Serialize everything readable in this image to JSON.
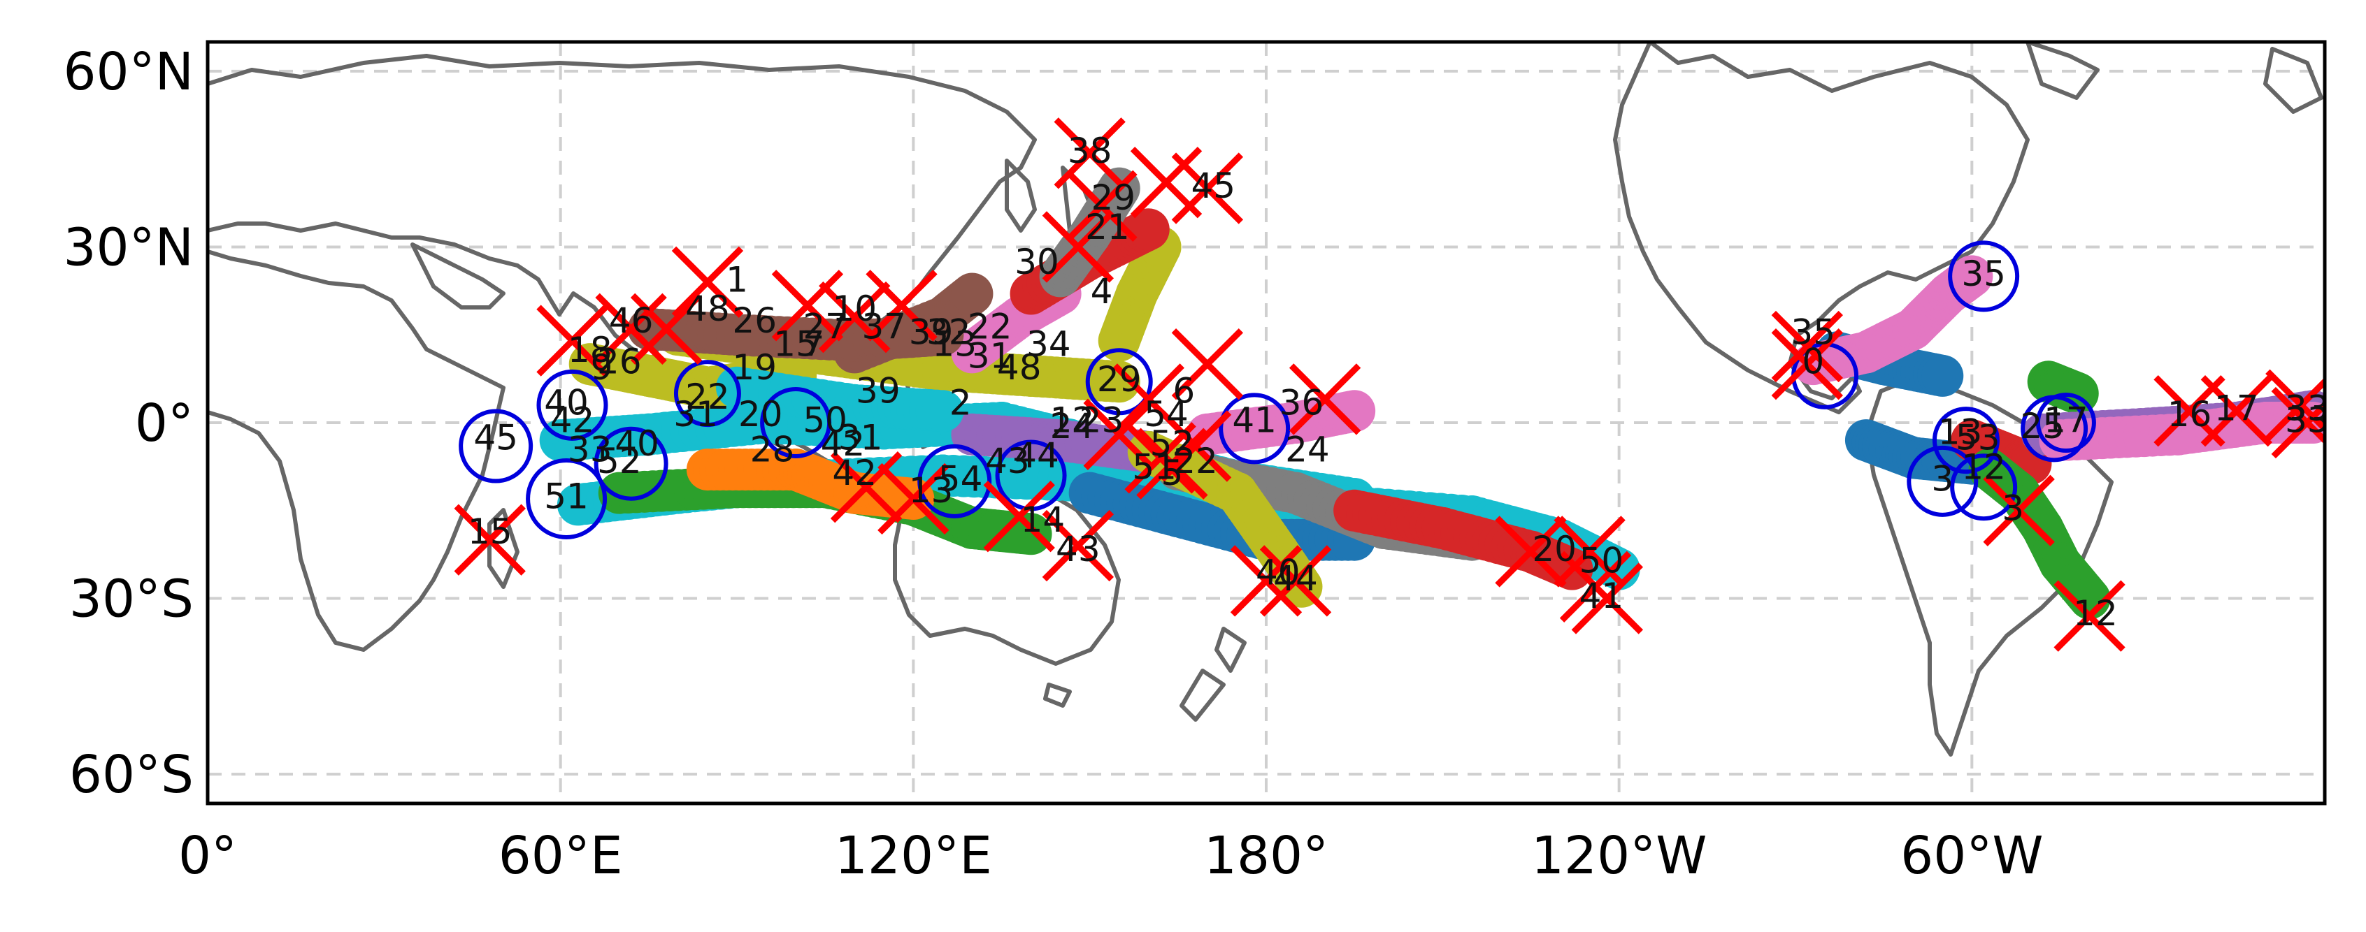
{
  "map": {
    "projection": "PlateCarree",
    "lon_range_east": [
      0,
      360
    ],
    "lat_range": [
      -65,
      65
    ],
    "x_ticks": [
      "0°",
      "60°E",
      "120°E",
      "180°",
      "120°W",
      "60°W"
    ],
    "y_ticks": [
      "60°N",
      "30°N",
      "0°",
      "30°S",
      "60°S"
    ],
    "gridlines": true,
    "coastline_color": "#666666",
    "genesis_marker": {
      "shape": "circle",
      "color": "#0000dd"
    },
    "lysis_marker": {
      "shape": "x",
      "color": "#ff0000"
    },
    "colors": [
      "#1f77b4",
      "#ff7f0e",
      "#2ca02c",
      "#d62728",
      "#9467bd",
      "#8c564b",
      "#e377c2",
      "#7f7f7f",
      "#bcbd22",
      "#17becf"
    ]
  },
  "tracks": [
    {
      "c": 9,
      "pts": [
        [
          60,
          -3
        ],
        [
          75,
          -2
        ],
        [
          95,
          0
        ],
        [
          115,
          -1
        ],
        [
          135,
          0
        ],
        [
          155,
          -5
        ],
        [
          175,
          -10
        ],
        [
          195,
          -13
        ]
      ]
    },
    {
      "c": 9,
      "pts": [
        [
          63,
          -14
        ],
        [
          80,
          -12
        ],
        [
          100,
          -10
        ],
        [
          125,
          -9
        ],
        [
          150,
          -10
        ],
        [
          170,
          -12
        ],
        [
          190,
          -14
        ],
        [
          215,
          -16
        ],
        [
          230,
          -20
        ],
        [
          240,
          -25
        ]
      ]
    },
    {
      "c": 0,
      "pts": [
        [
          150,
          -12
        ],
        [
          165,
          -16
        ],
        [
          180,
          -20
        ],
        [
          195,
          -20
        ]
      ]
    },
    {
      "c": 7,
      "pts": [
        [
          165,
          -8
        ],
        [
          185,
          -12
        ],
        [
          200,
          -18
        ],
        [
          215,
          -20
        ]
      ]
    },
    {
      "c": 3,
      "pts": [
        [
          195,
          -15
        ],
        [
          210,
          -18
        ],
        [
          225,
          -22
        ],
        [
          232,
          -25
        ]
      ]
    },
    {
      "c": 8,
      "pts": [
        [
          80,
          15
        ],
        [
          95,
          13
        ],
        [
          110,
          11
        ],
        [
          125,
          9
        ],
        [
          140,
          8
        ],
        [
          155,
          7
        ]
      ]
    },
    {
      "c": 8,
      "pts": [
        [
          155,
          14
        ],
        [
          158,
          22
        ],
        [
          162,
          30
        ]
      ]
    },
    {
      "c": 5,
      "pts": [
        [
          110,
          12
        ],
        [
          125,
          18
        ],
        [
          130,
          22
        ]
      ]
    },
    {
      "c": 6,
      "pts": [
        [
          130,
          12
        ],
        [
          138,
          18
        ],
        [
          145,
          22
        ]
      ]
    },
    {
      "c": 3,
      "pts": [
        [
          140,
          22
        ],
        [
          150,
          28
        ],
        [
          160,
          33
        ]
      ]
    },
    {
      "c": 7,
      "pts": [
        [
          145,
          25
        ],
        [
          150,
          32
        ],
        [
          155,
          40
        ]
      ]
    },
    {
      "c": 6,
      "pts": [
        [
          170,
          -2
        ],
        [
          185,
          0
        ],
        [
          195,
          2
        ]
      ]
    },
    {
      "c": 2,
      "pts": [
        [
          70,
          -12
        ],
        [
          90,
          -11
        ],
        [
          105,
          -11
        ],
        [
          120,
          -14
        ],
        [
          130,
          -18
        ],
        [
          140,
          -19
        ]
      ]
    },
    {
      "c": 1,
      "pts": [
        [
          85,
          -8
        ],
        [
          100,
          -8
        ],
        [
          110,
          -12
        ],
        [
          120,
          -13
        ]
      ]
    },
    {
      "c": 4,
      "pts": [
        [
          130,
          -2
        ],
        [
          145,
          -3
        ],
        [
          160,
          -5
        ]
      ]
    },
    {
      "c": 8,
      "pts": [
        [
          160,
          -5
        ],
        [
          175,
          -12
        ],
        [
          182,
          -22
        ],
        [
          186,
          -28
        ]
      ]
    },
    {
      "c": 0,
      "pts": [
        [
          277,
          12
        ],
        [
          285,
          10
        ],
        [
          295,
          8
        ]
      ]
    },
    {
      "c": 6,
      "pts": [
        [
          273,
          10
        ],
        [
          282,
          12
        ],
        [
          290,
          16
        ],
        [
          296,
          22
        ],
        [
          300,
          25
        ]
      ]
    },
    {
      "c": 0,
      "pts": [
        [
          282,
          -3
        ],
        [
          290,
          -6
        ],
        [
          300,
          -7
        ]
      ]
    },
    {
      "c": 3,
      "pts": [
        [
          300,
          -3
        ],
        [
          305,
          -5
        ],
        [
          310,
          -7
        ]
      ]
    },
    {
      "c": 2,
      "pts": [
        [
          303,
          -8
        ],
        [
          308,
          -12
        ],
        [
          312,
          -18
        ],
        [
          315,
          -24
        ],
        [
          320,
          -30
        ]
      ]
    },
    {
      "c": 2,
      "pts": [
        [
          313,
          7
        ],
        [
          318,
          5
        ]
      ]
    },
    {
      "c": 4,
      "pts": [
        [
          312,
          -2
        ],
        [
          330,
          -1
        ],
        [
          345,
          0
        ],
        [
          358,
          2
        ]
      ]
    },
    {
      "c": 6,
      "pts": [
        [
          315,
          -3
        ],
        [
          335,
          -2
        ],
        [
          350,
          0
        ],
        [
          358,
          0
        ]
      ]
    },
    {
      "c": 8,
      "pts": [
        [
          65,
          10
        ],
        [
          75,
          8
        ],
        [
          85,
          6
        ],
        [
          100,
          8
        ]
      ]
    },
    {
      "c": 5,
      "pts": [
        [
          75,
          16
        ],
        [
          90,
          15
        ],
        [
          110,
          14
        ],
        [
          125,
          15
        ]
      ]
    },
    {
      "c": 9,
      "pts": [
        [
          90,
          6
        ],
        [
          110,
          3
        ],
        [
          125,
          2
        ]
      ]
    }
  ],
  "genesis": [
    {
      "lon": 62,
      "lat": 3,
      "r": 48
    },
    {
      "lon": 49,
      "lat": -4,
      "r": 50
    },
    {
      "lon": 61,
      "lat": -13,
      "r": 55
    },
    {
      "lon": 72,
      "lat": -7,
      "r": 50
    },
    {
      "lon": 85,
      "lat": 5,
      "r": 45
    },
    {
      "lon": 100,
      "lat": 0,
      "r": 48
    },
    {
      "lon": 127,
      "lat": -10,
      "r": 50
    },
    {
      "lon": 140,
      "lat": -9,
      "r": 48
    },
    {
      "lon": 155,
      "lat": 7,
      "r": 45
    },
    {
      "lon": 178,
      "lat": -1,
      "r": 48
    },
    {
      "lon": 275,
      "lat": 8,
      "r": 45
    },
    {
      "lon": 302,
      "lat": 25,
      "r": 48
    },
    {
      "lon": 295,
      "lat": -10,
      "r": 48
    },
    {
      "lon": 299,
      "lat": -3,
      "r": 45
    },
    {
      "lon": 302,
      "lat": -11,
      "r": 45
    },
    {
      "lon": 314,
      "lat": -1,
      "r": 45
    },
    {
      "lon": 316,
      "lat": 0,
      "r": 40
    }
  ],
  "lysis": [
    {
      "lon": 85,
      "lat": 24
    },
    {
      "lon": 78,
      "lat": 16
    },
    {
      "lon": 72,
      "lat": 16
    },
    {
      "lon": 62,
      "lat": 14
    },
    {
      "lon": 48,
      "lat": -20
    },
    {
      "lon": 102,
      "lat": 20
    },
    {
      "lon": 110,
      "lat": 18
    },
    {
      "lon": 118,
      "lat": 20
    },
    {
      "lon": 150,
      "lat": 46
    },
    {
      "lon": 152,
      "lat": 37
    },
    {
      "lon": 163,
      "lat": 41
    },
    {
      "lon": 170,
      "lat": 40
    },
    {
      "lon": 148,
      "lat": 30
    },
    {
      "lon": 170,
      "lat": 10
    },
    {
      "lon": 160,
      "lat": 4
    },
    {
      "lon": 155,
      "lat": -2
    },
    {
      "lon": 162,
      "lat": -6
    },
    {
      "lon": 168,
      "lat": -4
    },
    {
      "lon": 164,
      "lat": -7
    },
    {
      "lon": 185,
      "lat": -27
    },
    {
      "lon": 180,
      "lat": -27
    },
    {
      "lon": 190,
      "lat": 4
    },
    {
      "lon": 236,
      "lat": -28
    },
    {
      "lon": 238,
      "lat": -30
    },
    {
      "lon": 225,
      "lat": -22
    },
    {
      "lon": 235,
      "lat": -22
    },
    {
      "lon": 148,
      "lat": -21
    },
    {
      "lon": 138,
      "lat": -16
    },
    {
      "lon": 112,
      "lat": -11
    },
    {
      "lon": 120,
      "lat": -13
    },
    {
      "lon": 272,
      "lat": 13
    },
    {
      "lon": 272,
      "lat": 10
    },
    {
      "lon": 308,
      "lat": -15
    },
    {
      "lon": 320,
      "lat": -33
    },
    {
      "lon": 337,
      "lat": 2
    },
    {
      "lon": 345,
      "lat": 2
    },
    {
      "lon": 356,
      "lat": 3
    },
    {
      "lon": 357,
      "lat": 0
    }
  ],
  "labels": [
    {
      "t": "1",
      "lon": 90,
      "lat": 24
    },
    {
      "t": "46",
      "lon": 72,
      "lat": 17
    },
    {
      "t": "48",
      "lon": 85,
      "lat": 19
    },
    {
      "t": "26",
      "lon": 93,
      "lat": 17
    },
    {
      "t": "15",
      "lon": 100,
      "lat": 13
    },
    {
      "t": "27",
      "lon": 105,
      "lat": 16
    },
    {
      "t": "10",
      "lon": 110,
      "lat": 19
    },
    {
      "t": "7",
      "lon": 103,
      "lat": 13
    },
    {
      "t": "37",
      "lon": 115,
      "lat": 16
    },
    {
      "t": "39",
      "lon": 123,
      "lat": 15
    },
    {
      "t": "32",
      "lon": 126,
      "lat": 15
    },
    {
      "t": "22",
      "lon": 133,
      "lat": 16
    },
    {
      "t": "13",
      "lon": 127,
      "lat": 13
    },
    {
      "t": "31",
      "lon": 133,
      "lat": 11
    },
    {
      "t": "34",
      "lon": 143,
      "lat": 13
    },
    {
      "t": "48",
      "lon": 138,
      "lat": 9
    },
    {
      "t": "30",
      "lon": 141,
      "lat": 27
    },
    {
      "t": "4",
      "lon": 152,
      "lat": 22
    },
    {
      "t": "38",
      "lon": 150,
      "lat": 46
    },
    {
      "t": "29",
      "lon": 154,
      "lat": 38
    },
    {
      "t": "21",
      "lon": 153,
      "lat": 33
    },
    {
      "t": "45",
      "lon": 171,
      "lat": 40
    },
    {
      "t": "18",
      "lon": 65,
      "lat": 12
    },
    {
      "t": "26",
      "lon": 70,
      "lat": 10
    },
    {
      "t": "9",
      "lon": 67,
      "lat": 9
    },
    {
      "t": "19",
      "lon": 93,
      "lat": 9
    },
    {
      "t": "29",
      "lon": 155,
      "lat": 7
    },
    {
      "t": "6",
      "lon": 166,
      "lat": 5
    },
    {
      "t": "36",
      "lon": 186,
      "lat": 3
    },
    {
      "t": "39",
      "lon": 114,
      "lat": 5
    },
    {
      "t": "2",
      "lon": 128,
      "lat": 3
    },
    {
      "t": "50",
      "lon": 105,
      "lat": 0
    },
    {
      "t": "45",
      "lon": 49,
      "lat": -3
    },
    {
      "t": "51",
      "lon": 61,
      "lat": -13
    },
    {
      "t": "15",
      "lon": 48,
      "lat": -19
    },
    {
      "t": "42",
      "lon": 110,
      "lat": -9
    },
    {
      "t": "13",
      "lon": 123,
      "lat": -12
    },
    {
      "t": "54",
      "lon": 128,
      "lat": -10
    },
    {
      "t": "43",
      "lon": 136,
      "lat": -7
    },
    {
      "t": "14",
      "lon": 142,
      "lat": -17
    },
    {
      "t": "44",
      "lon": 141,
      "lat": -6
    },
    {
      "t": "43",
      "lon": 148,
      "lat": -22
    },
    {
      "t": "12",
      "lon": 147,
      "lat": 0
    },
    {
      "t": "23",
      "lon": 152,
      "lat": 0
    },
    {
      "t": "24",
      "lon": 147,
      "lat": -1
    },
    {
      "t": "54",
      "lon": 163,
      "lat": 1
    },
    {
      "t": "52",
      "lon": 164,
      "lat": -4
    },
    {
      "t": "22",
      "lon": 168,
      "lat": -7
    },
    {
      "t": "51",
      "lon": 161,
      "lat": -8
    },
    {
      "t": "5",
      "lon": 164,
      "lat": -9
    },
    {
      "t": "41",
      "lon": 178,
      "lat": 0
    },
    {
      "t": "24",
      "lon": 187,
      "lat": -5
    },
    {
      "t": "40",
      "lon": 182,
      "lat": -26
    },
    {
      "t": "44",
      "lon": 185,
      "lat": -27
    },
    {
      "t": "20",
      "lon": 229,
      "lat": -22
    },
    {
      "t": "50",
      "lon": 237,
      "lat": -24
    },
    {
      "t": "41",
      "lon": 237,
      "lat": -30
    },
    {
      "t": "35",
      "lon": 273,
      "lat": 15
    },
    {
      "t": "0",
      "lon": 273,
      "lat": 10
    },
    {
      "t": "35",
      "lon": 302,
      "lat": 25
    },
    {
      "t": "3",
      "lon": 295,
      "lat": -10
    },
    {
      "t": "13",
      "lon": 298,
      "lat": -2
    },
    {
      "t": "53",
      "lon": 301,
      "lat": -3
    },
    {
      "t": "12",
      "lon": 302,
      "lat": -8
    },
    {
      "t": "3",
      "lon": 307,
      "lat": -15
    },
    {
      "t": "25",
      "lon": 312,
      "lat": -1
    },
    {
      "t": "17",
      "lon": 316,
      "lat": 0
    },
    {
      "t": "12",
      "lon": 321,
      "lat": -33
    },
    {
      "t": "16",
      "lon": 337,
      "lat": 1
    },
    {
      "t": "17",
      "lon": 345,
      "lat": 2
    },
    {
      "t": "33",
      "lon": 357,
      "lat": 2
    },
    {
      "t": "33",
      "lon": 357,
      "lat": 0
    },
    {
      "t": "40",
      "lon": 61,
      "lat": 3
    },
    {
      "t": "42",
      "lon": 62,
      "lat": 0
    },
    {
      "t": "33",
      "lon": 65,
      "lat": -5
    },
    {
      "t": "52",
      "lon": 70,
      "lat": -7
    },
    {
      "t": "40",
      "lon": 73,
      "lat": -4
    },
    {
      "t": "31",
      "lon": 83,
      "lat": 1
    },
    {
      "t": "28",
      "lon": 96,
      "lat": -5
    },
    {
      "t": "20",
      "lon": 94,
      "lat": 1
    },
    {
      "t": "42",
      "lon": 108,
      "lat": -4
    },
    {
      "t": "31",
      "lon": 111,
      "lat": -3
    },
    {
      "t": "22",
      "lon": 85,
      "lat": 4
    }
  ]
}
